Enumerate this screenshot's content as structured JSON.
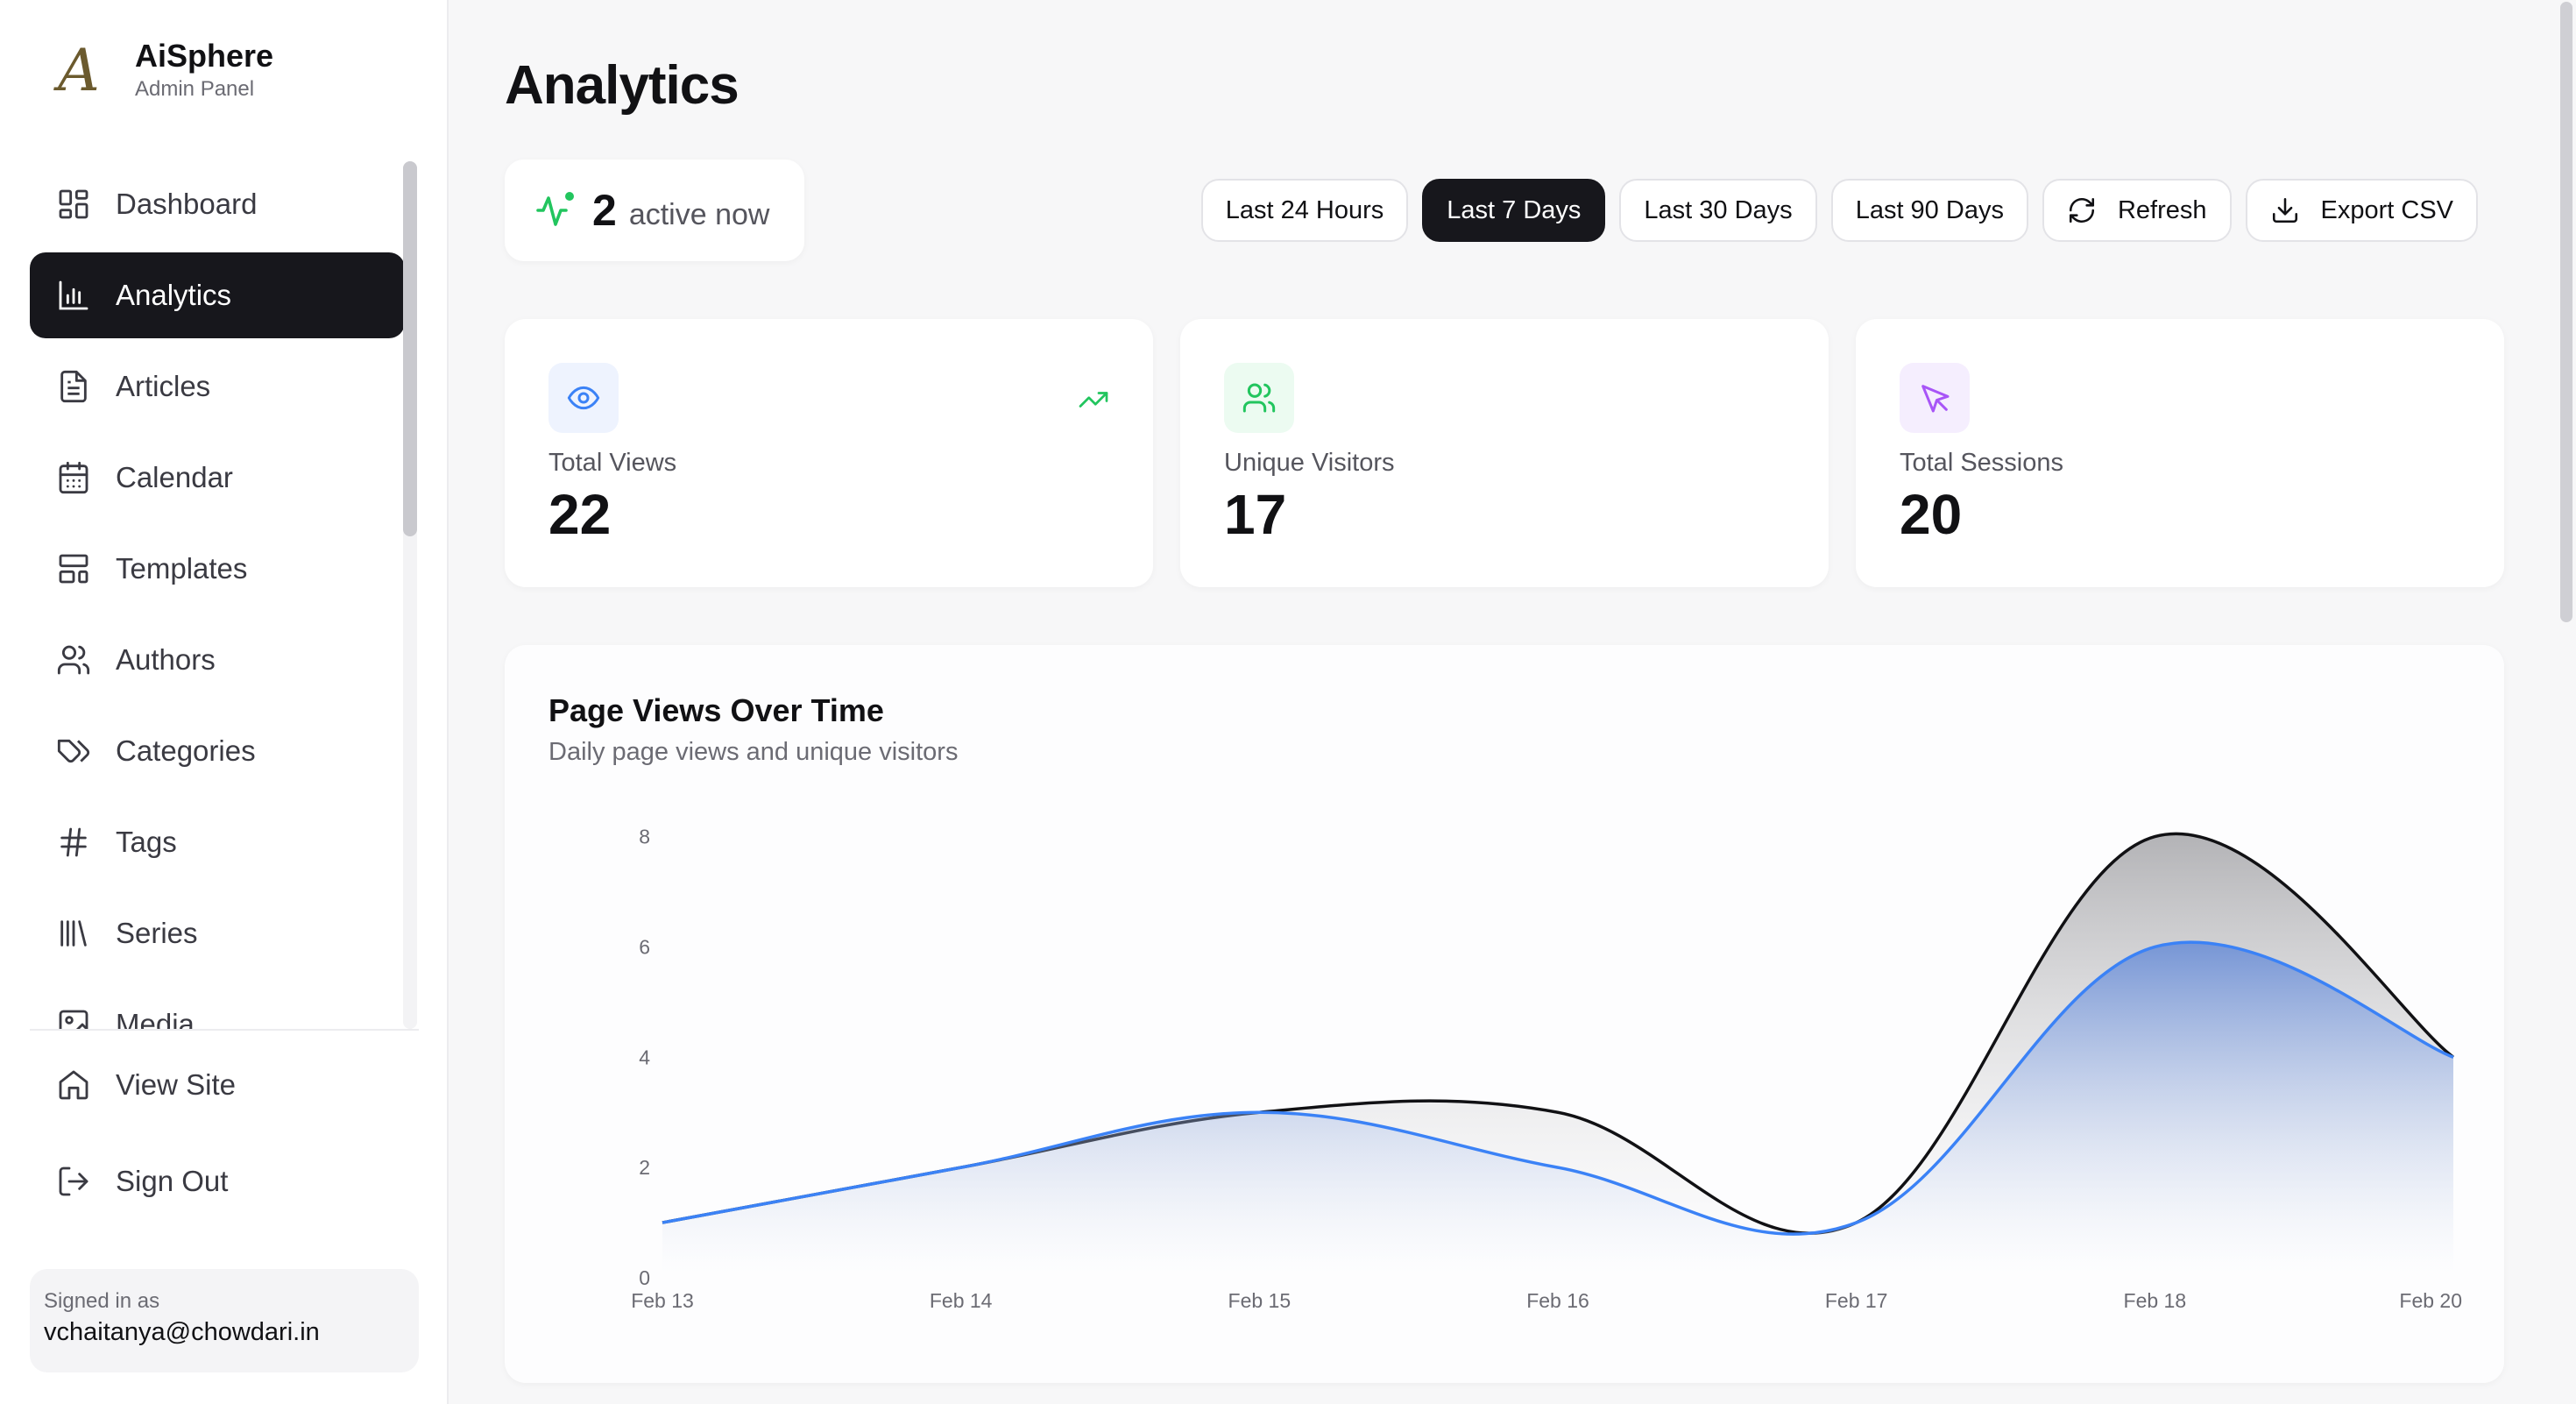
{
  "brand": {
    "name": "AiSphere",
    "subtitle": "Admin Panel",
    "logo_glyph": "A"
  },
  "sidebar": {
    "items": [
      {
        "label": "Dashboard",
        "icon": "dashboard-icon"
      },
      {
        "label": "Analytics",
        "icon": "bar-chart-icon",
        "active": true
      },
      {
        "label": "Articles",
        "icon": "file-text-icon"
      },
      {
        "label": "Calendar",
        "icon": "calendar-icon"
      },
      {
        "label": "Templates",
        "icon": "templates-icon"
      },
      {
        "label": "Authors",
        "icon": "users-icon"
      },
      {
        "label": "Categories",
        "icon": "tags-icon"
      },
      {
        "label": "Tags",
        "icon": "hash-icon"
      },
      {
        "label": "Series",
        "icon": "library-icon"
      },
      {
        "label": "Media",
        "icon": "image-icon"
      }
    ],
    "footer_items": [
      {
        "label": "View Site",
        "icon": "home-icon"
      },
      {
        "label": "Sign Out",
        "icon": "log-out-icon"
      }
    ],
    "signed_in": {
      "label": "Signed in as",
      "email": "vchaitanya@chowdari.in"
    }
  },
  "main": {
    "title": "Analytics",
    "active_now": {
      "count": "2",
      "label": "active now",
      "icon": "activity-icon",
      "color": "#22c55e"
    },
    "ranges": [
      "Last 24 Hours",
      "Last 7 Days",
      "Last 30 Days",
      "Last 90 Days"
    ],
    "selected_range": "Last 7 Days",
    "refresh_label": "Refresh",
    "export_label": "Export CSV",
    "stats": [
      {
        "label": "Total Views",
        "value": "22",
        "icon": "eye-icon",
        "color": "#3b82f6",
        "bg": "#eef3fe",
        "trend": "trending-up-icon"
      },
      {
        "label": "Unique Visitors",
        "value": "17",
        "icon": "users-icon",
        "color": "#22c55e",
        "bg": "#ecfbf1"
      },
      {
        "label": "Total Sessions",
        "value": "20",
        "icon": "cursor-icon",
        "color": "#a855f7",
        "bg": "#f5eefe"
      }
    ]
  },
  "chart": {
    "title": "Page Views Over Time",
    "subtitle": "Daily page views and unique visitors"
  },
  "chart_data": {
    "type": "area",
    "title": "Page Views Over Time",
    "subtitle": "Daily page views and unique visitors",
    "categories": [
      "Feb 13",
      "Feb 14",
      "Feb 15",
      "Feb 16",
      "Feb 17",
      "Feb 18",
      "Feb 20"
    ],
    "series": [
      {
        "values": [
          1,
          2,
          3,
          3,
          1,
          8,
          4
        ],
        "color": "#111114"
      },
      {
        "values": [
          1,
          2,
          3,
          2,
          1,
          6,
          4
        ],
        "color": "#3b82f6"
      }
    ],
    "yticks": [
      0,
      2,
      4,
      6,
      8
    ],
    "ylim": [
      0,
      8.2
    ],
    "grid": false
  }
}
